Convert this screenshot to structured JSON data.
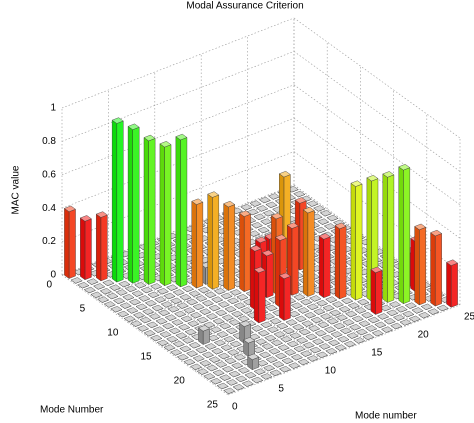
{
  "chart_data": {
    "type": "bar3d",
    "title": "Modal Assurance Criterion",
    "xlabel": "Mode Number",
    "ylabel": "Mode number",
    "zlabel": "MAC value",
    "xlim": [
      0,
      25
    ],
    "ylim": [
      0,
      25
    ],
    "zlim": [
      0,
      1
    ],
    "xticks": [
      0,
      5,
      10,
      15,
      20,
      25
    ],
    "yticks": [
      0,
      5,
      10,
      15,
      20,
      25
    ],
    "zticks": [
      0,
      0.2,
      0.4,
      0.6,
      0.8,
      1
    ],
    "grid": true,
    "values": [
      [
        0.4,
        0,
        0,
        0,
        0,
        0,
        0,
        0,
        0,
        0,
        0,
        0,
        0,
        0,
        0,
        0,
        0,
        0,
        0,
        0,
        0,
        0,
        0,
        0,
        0
      ],
      [
        0,
        0.35,
        0,
        0,
        0,
        0,
        0,
        0,
        0,
        0,
        0,
        0,
        0,
        0,
        0,
        0,
        0,
        0,
        0,
        0,
        0,
        0,
        0,
        0,
        0
      ],
      [
        0,
        0,
        0.38,
        0,
        0,
        0,
        0,
        0,
        0,
        0,
        0,
        0,
        0,
        0,
        0.05,
        0,
        0,
        0,
        0,
        0,
        0,
        0,
        0,
        0,
        0
      ],
      [
        0,
        0,
        0,
        0.95,
        0,
        0,
        0,
        0,
        0,
        0,
        0,
        0,
        0,
        0,
        0,
        0,
        0,
        0,
        0,
        0,
        0,
        0,
        0,
        0,
        0
      ],
      [
        0,
        0,
        0,
        0,
        0.92,
        0,
        0,
        0,
        0,
        0,
        0,
        0,
        0,
        0,
        0,
        0,
        0,
        0,
        0,
        0,
        0,
        0,
        0,
        0,
        0
      ],
      [
        0,
        0,
        0,
        0,
        0,
        0.86,
        0,
        0,
        0,
        0,
        0,
        0,
        0,
        0,
        0,
        0,
        0,
        0,
        0,
        0,
        0,
        0,
        0,
        0,
        0
      ],
      [
        0,
        0,
        0,
        0,
        0,
        0,
        0.83,
        0,
        0,
        0,
        0,
        0,
        0,
        0,
        0,
        0,
        0,
        0,
        0,
        0,
        0,
        0,
        0,
        0,
        0
      ],
      [
        0,
        0,
        0,
        0,
        0,
        0,
        0,
        0.88,
        0,
        0,
        0,
        0,
        0,
        0,
        0,
        0,
        0,
        0,
        0,
        0,
        0,
        0,
        0,
        0,
        0
      ],
      [
        0,
        0,
        0,
        0,
        0,
        0,
        0,
        0,
        0.5,
        0.1,
        0,
        0,
        0,
        0,
        0,
        0,
        0,
        0,
        0,
        0,
        0,
        0,
        0,
        0,
        0
      ],
      [
        0,
        0,
        0,
        0,
        0,
        0,
        0,
        0,
        0,
        0.55,
        0,
        0,
        0,
        0,
        0,
        0,
        0,
        0,
        0,
        0,
        0,
        0,
        0,
        0,
        0
      ],
      [
        0,
        0,
        0,
        0,
        0,
        0,
        0,
        0,
        0,
        0,
        0.5,
        0,
        0,
        0,
        0,
        0,
        0.55,
        0,
        0,
        0,
        0,
        0,
        0,
        0,
        0
      ],
      [
        0,
        0,
        0,
        0,
        0,
        0,
        0,
        0,
        0,
        0,
        0,
        0.45,
        0,
        0,
        0,
        0,
        0,
        0.4,
        0,
        0,
        0,
        0,
        0,
        0,
        0
      ],
      [
        0,
        0,
        0,
        0,
        0,
        0,
        0,
        0,
        0,
        0,
        0,
        0,
        0.3,
        0.3,
        0,
        0,
        0,
        0,
        0,
        0,
        0,
        0,
        0,
        0,
        0
      ],
      [
        0,
        0,
        0,
        0,
        0,
        0,
        0,
        0,
        0,
        0,
        0,
        0,
        0.25,
        0.45,
        0,
        0,
        0,
        0,
        0,
        0,
        0,
        0,
        0,
        0,
        0
      ],
      [
        0,
        0,
        0,
        0,
        0,
        0,
        0,
        0,
        0,
        0,
        0.35,
        0,
        0,
        0,
        0.4,
        0,
        0,
        0,
        0,
        0,
        0,
        0,
        0,
        0,
        0
      ],
      [
        0,
        0,
        0,
        0,
        0,
        0,
        0,
        0,
        0,
        0,
        0,
        0,
        0.4,
        0,
        0,
        0.5,
        0,
        0,
        0,
        0,
        0,
        0,
        0,
        0,
        0
      ],
      [
        0,
        0,
        0,
        0.08,
        0,
        0,
        0,
        0,
        0,
        0.3,
        0,
        0,
        0,
        0,
        0,
        0,
        0.35,
        0,
        0,
        0,
        0,
        0,
        0,
        0,
        0
      ],
      [
        0,
        0,
        0,
        0,
        0,
        0,
        0,
        0,
        0,
        0,
        0,
        0.25,
        0,
        0,
        0,
        0,
        0,
        0.42,
        0,
        0,
        0,
        0,
        0,
        0,
        0
      ],
      [
        0,
        0,
        0,
        0,
        0,
        0,
        0.1,
        0,
        0,
        0,
        0,
        0,
        0,
        0,
        0,
        0,
        0,
        0,
        0.68,
        0,
        0,
        0,
        0,
        0,
        0
      ],
      [
        0,
        0,
        0,
        0,
        0,
        0,
        0,
        0,
        0,
        0,
        0,
        0,
        0,
        0,
        0,
        0,
        0,
        0,
        0,
        0.72,
        0,
        0,
        0,
        0.2,
        0
      ],
      [
        0,
        0,
        0,
        0,
        0,
        0.08,
        0,
        0,
        0,
        0,
        0,
        0,
        0,
        0,
        0,
        0,
        0,
        0,
        0,
        0,
        0.75,
        0,
        0,
        0.3,
        0
      ],
      [
        0,
        0,
        0,
        0,
        0,
        0,
        0,
        0,
        0,
        0,
        0,
        0,
        0,
        0,
        0,
        0,
        0,
        0,
        0.25,
        0,
        0,
        0.8,
        0,
        0,
        0
      ],
      [
        0,
        0,
        0,
        0,
        0.06,
        0,
        0,
        0,
        0,
        0,
        0,
        0,
        0,
        0,
        0,
        0,
        0,
        0,
        0,
        0,
        0,
        0,
        0.45,
        0,
        0
      ],
      [
        0,
        0,
        0,
        0,
        0,
        0,
        0,
        0,
        0,
        0,
        0,
        0,
        0,
        0,
        0,
        0,
        0,
        0,
        0,
        0,
        0,
        0,
        0,
        0.42,
        0
      ],
      [
        0,
        0,
        0,
        0,
        0,
        0,
        0,
        0,
        0,
        0,
        0,
        0,
        0,
        0,
        0,
        0,
        0,
        0,
        0,
        0,
        0,
        0,
        0,
        0,
        0.25
      ]
    ]
  }
}
